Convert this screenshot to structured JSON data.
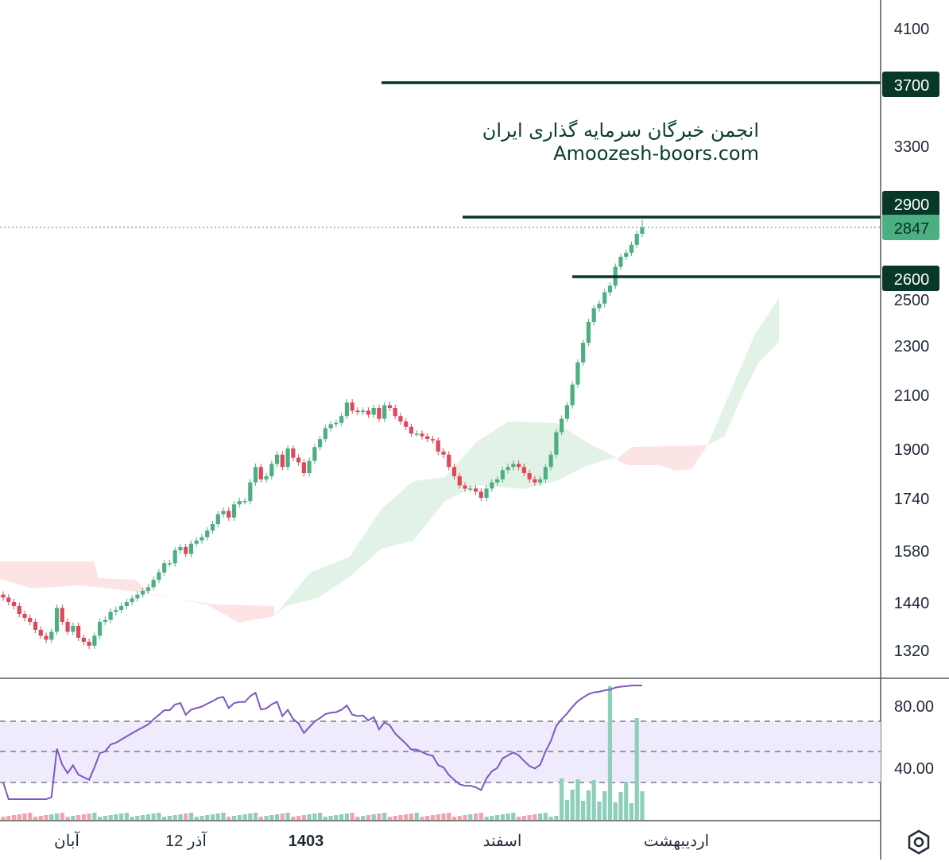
{
  "watermark": {
    "line1": "انجمن خبرگان سرمایه گذاری ایران",
    "line2": "Amoozesh-boors.com"
  },
  "colors": {
    "up": "#4caf82",
    "down": "#e0475b",
    "line": "#083828",
    "rsi": "#7e57c2",
    "cloud_bull": "#e3f2e6",
    "cloud_bear": "#fde4e4",
    "band": "#efeafc",
    "axis": "#555555"
  },
  "chart_data": [
    {
      "type": "candlestick",
      "price_axis": {
        "ticks": [
          "4100",
          "3300",
          "2500",
          "2300",
          "2100",
          "1900",
          "1740",
          "1580",
          "1440",
          "1320"
        ]
      },
      "time_axis": {
        "ticks": [
          "آبان",
          "12 آذر",
          "1403",
          "اسفند",
          "اردیبهشت"
        ]
      },
      "horizontal_lines": [
        {
          "label": "3700",
          "value": 3700
        },
        {
          "label": "2900",
          "value": 2900
        },
        {
          "label": "2600",
          "value": 2600
        }
      ],
      "last_price": {
        "label": "2847",
        "value": 2847
      },
      "close_series": [
        1452,
        1440,
        1430,
        1410,
        1400,
        1390,
        1370,
        1355,
        1345,
        1365,
        1425,
        1390,
        1365,
        1380,
        1350,
        1340,
        1330,
        1355,
        1390,
        1395,
        1415,
        1420,
        1430,
        1440,
        1450,
        1460,
        1470,
        1480,
        1500,
        1520,
        1545,
        1545,
        1580,
        1590,
        1570,
        1600,
        1610,
        1620,
        1640,
        1660,
        1690,
        1700,
        1680,
        1720,
        1730,
        1730,
        1790,
        1840,
        1800,
        1810,
        1850,
        1880,
        1840,
        1900,
        1870,
        1855,
        1820,
        1860,
        1905,
        1935,
        1975,
        1990,
        1995,
        2020,
        2070,
        2040,
        2035,
        2040,
        2025,
        2050,
        2010,
        2060,
        2050,
        2020,
        2000,
        1980,
        1955,
        1955,
        1945,
        1935,
        1930,
        1890,
        1880,
        1840,
        1810,
        1780,
        1770,
        1770,
        1760,
        1740,
        1770,
        1790,
        1800,
        1830,
        1840,
        1850,
        1840,
        1820,
        1800,
        1790,
        1800,
        1840,
        1880,
        1960,
        2010,
        2060,
        2140,
        2230,
        2310,
        2400,
        2460,
        2480,
        2530,
        2560,
        2650,
        2700,
        2720,
        2760,
        2815,
        2847
      ],
      "rsi_overlay": {
        "ticks": [
          "80.00",
          "40.00"
        ],
        "band": [
          30,
          70
        ],
        "mid": 50
      }
    }
  ]
}
